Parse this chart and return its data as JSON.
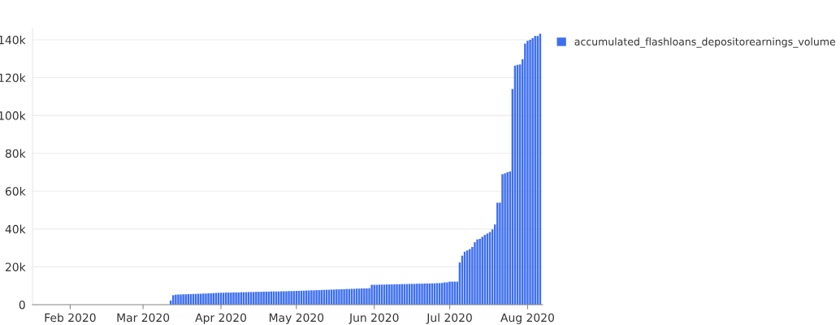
{
  "chart_data": {
    "type": "bar",
    "x": [
      "2020-03-12",
      "2020-03-13",
      "2020-03-14",
      "2020-03-15",
      "2020-03-16",
      "2020-03-17",
      "2020-03-18",
      "2020-03-19",
      "2020-03-20",
      "2020-03-21",
      "2020-03-22",
      "2020-03-23",
      "2020-03-24",
      "2020-03-25",
      "2020-03-26",
      "2020-03-27",
      "2020-03-28",
      "2020-03-29",
      "2020-03-30",
      "2020-03-31",
      "2020-04-01",
      "2020-04-02",
      "2020-04-03",
      "2020-04-04",
      "2020-04-05",
      "2020-04-06",
      "2020-04-07",
      "2020-04-08",
      "2020-04-09",
      "2020-04-10",
      "2020-04-11",
      "2020-04-12",
      "2020-04-13",
      "2020-04-14",
      "2020-04-15",
      "2020-04-16",
      "2020-04-17",
      "2020-04-18",
      "2020-04-19",
      "2020-04-20",
      "2020-04-21",
      "2020-04-22",
      "2020-04-23",
      "2020-04-24",
      "2020-04-25",
      "2020-04-26",
      "2020-04-27",
      "2020-04-28",
      "2020-04-29",
      "2020-04-30",
      "2020-05-01",
      "2020-05-02",
      "2020-05-03",
      "2020-05-04",
      "2020-05-05",
      "2020-05-06",
      "2020-05-07",
      "2020-05-08",
      "2020-05-09",
      "2020-05-10",
      "2020-05-11",
      "2020-05-12",
      "2020-05-13",
      "2020-05-14",
      "2020-05-15",
      "2020-05-16",
      "2020-05-17",
      "2020-05-18",
      "2020-05-19",
      "2020-05-20",
      "2020-05-21",
      "2020-05-22",
      "2020-05-23",
      "2020-05-24",
      "2020-05-25",
      "2020-05-26",
      "2020-05-27",
      "2020-05-28",
      "2020-05-29",
      "2020-05-30",
      "2020-05-31",
      "2020-06-01",
      "2020-06-02",
      "2020-06-03",
      "2020-06-04",
      "2020-06-05",
      "2020-06-06",
      "2020-06-07",
      "2020-06-08",
      "2020-06-09",
      "2020-06-10",
      "2020-06-11",
      "2020-06-12",
      "2020-06-13",
      "2020-06-14",
      "2020-06-15",
      "2020-06-16",
      "2020-06-17",
      "2020-06-18",
      "2020-06-19",
      "2020-06-20",
      "2020-06-21",
      "2020-06-22",
      "2020-06-23",
      "2020-06-24",
      "2020-06-25",
      "2020-06-26",
      "2020-06-27",
      "2020-06-28",
      "2020-06-29",
      "2020-06-30",
      "2020-07-01",
      "2020-07-02",
      "2020-07-03",
      "2020-07-04",
      "2020-07-05",
      "2020-07-06",
      "2020-07-07",
      "2020-07-08",
      "2020-07-09",
      "2020-07-10",
      "2020-07-11",
      "2020-07-12",
      "2020-07-13",
      "2020-07-14",
      "2020-07-15",
      "2020-07-16",
      "2020-07-17",
      "2020-07-18",
      "2020-07-19",
      "2020-07-20",
      "2020-07-21",
      "2020-07-22",
      "2020-07-23",
      "2020-07-24",
      "2020-07-25",
      "2020-07-26",
      "2020-07-27",
      "2020-07-28",
      "2020-07-29",
      "2020-07-30",
      "2020-07-31",
      "2020-08-01",
      "2020-08-02",
      "2020-08-03",
      "2020-08-04",
      "2020-08-05",
      "2020-08-06"
    ],
    "series": [
      {
        "name": "accumulated_flashloans_depositorearnings_volume",
        "color": "#3e6ff0",
        "values": [
          2200,
          5000,
          5300,
          5400,
          5400,
          5500,
          5500,
          5600,
          5600,
          5700,
          5700,
          5800,
          5800,
          5900,
          5900,
          6000,
          6000,
          6100,
          6200,
          6300,
          6300,
          6300,
          6400,
          6400,
          6400,
          6500,
          6500,
          6500,
          6600,
          6600,
          6600,
          6700,
          6700,
          6700,
          6800,
          6800,
          6800,
          6900,
          6900,
          6900,
          7000,
          7000,
          7000,
          7000,
          7100,
          7100,
          7100,
          7200,
          7200,
          7200,
          7300,
          7300,
          7400,
          7400,
          7500,
          7500,
          7600,
          7600,
          7700,
          7700,
          7800,
          7800,
          7900,
          7900,
          8000,
          8000,
          8100,
          8100,
          8200,
          8200,
          8300,
          8300,
          8400,
          8400,
          8500,
          8500,
          8600,
          8600,
          8600,
          8700,
          10500,
          10500,
          10500,
          10600,
          10600,
          10600,
          10700,
          10700,
          10700,
          10800,
          10800,
          10800,
          10900,
          10900,
          10900,
          11000,
          11000,
          11000,
          11100,
          11100,
          11100,
          11200,
          11200,
          11200,
          11300,
          11300,
          11400,
          11400,
          11500,
          11800,
          11800,
          12200,
          12200,
          12200,
          12200,
          22300,
          25900,
          28000,
          28700,
          29400,
          30500,
          33000,
          34500,
          34800,
          35900,
          36900,
          37600,
          38400,
          39800,
          42400,
          53900,
          53900,
          69000,
          69400,
          70000,
          70400,
          114000,
          126400,
          126800,
          127000,
          129700,
          137900,
          139400,
          140000,
          140800,
          142000,
          142000,
          143200
        ]
      }
    ],
    "xlim": [
      "2020-01-17",
      "2020-08-07"
    ],
    "xticks": [
      {
        "value": "2020-02-01",
        "label": "Feb 2020"
      },
      {
        "value": "2020-03-01",
        "label": "Mar 2020"
      },
      {
        "value": "2020-04-01",
        "label": "Apr 2020"
      },
      {
        "value": "2020-05-01",
        "label": "May 2020"
      },
      {
        "value": "2020-06-01",
        "label": "Jun 2020"
      },
      {
        "value": "2020-07-01",
        "label": "Jul 2020"
      },
      {
        "value": "2020-08-01",
        "label": "Aug 2020"
      }
    ],
    "ylim": [
      0,
      146000
    ],
    "yticks": [
      {
        "value": 0,
        "label": "0"
      },
      {
        "value": 20000,
        "label": "20k"
      },
      {
        "value": 40000,
        "label": "40k"
      },
      {
        "value": 60000,
        "label": "60k"
      },
      {
        "value": 80000,
        "label": "80k"
      },
      {
        "value": 100000,
        "label": "100k"
      },
      {
        "value": 120000,
        "label": "120k"
      },
      {
        "value": 140000,
        "label": "140k"
      }
    ],
    "grid": "y",
    "legend": "top right"
  }
}
